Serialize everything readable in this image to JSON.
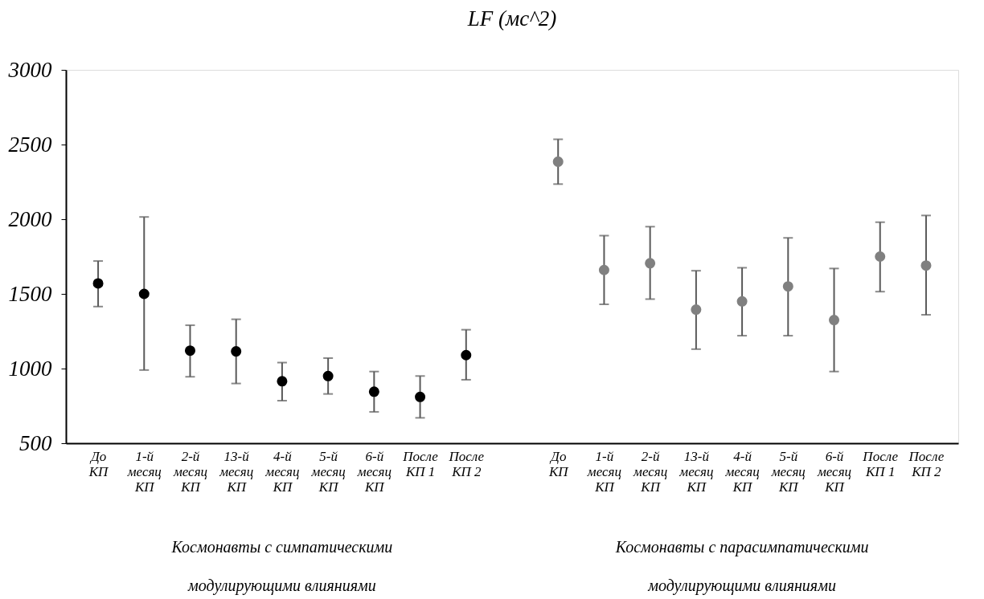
{
  "chart_data": {
    "type": "scatter",
    "title": "LF (мс^2)",
    "categories": [
      "До\nКП",
      "1-й\nмесяц\nКП",
      "2-й\nмесяц\nКП",
      "13-й\nмесяц\nКП",
      "4-й\nмесяц\nКП",
      "5-й\nмесяц\nКП",
      "6-й\nмесяц\nКП",
      "После\nКП 1",
      "После\nКП 2",
      null,
      "До\nКП",
      "1-й\nмесяц\nКП",
      "2-й\nмесяц\nКП",
      "13-й\nмесяц\nКП",
      "4-й\nмесяц\nКП",
      "5-й\nмесяц\nКП",
      "6-й\nмесяц\nКП",
      "После\nКП 1",
      "После\nКП 2"
    ],
    "series": [
      {
        "color": "#000000",
        "values": [
          1570,
          1500,
          1120,
          1115,
          915,
          950,
          845,
          810,
          1090,
          null,
          null,
          null,
          null,
          null,
          null,
          null,
          null,
          null,
          null
        ],
        "errors": [
          [
            1415,
            1720
          ],
          [
            990,
            2015
          ],
          [
            945,
            1290
          ],
          [
            900,
            1330
          ],
          [
            785,
            1040
          ],
          [
            830,
            1070
          ],
          [
            710,
            980
          ],
          [
            670,
            950
          ],
          [
            925,
            1260
          ],
          null,
          null,
          null,
          null,
          null,
          null,
          null,
          null,
          null,
          null
        ]
      },
      {
        "color": "#808080",
        "values": [
          null,
          null,
          null,
          null,
          null,
          null,
          null,
          null,
          null,
          null,
          2385,
          1660,
          1705,
          1395,
          1450,
          1550,
          1325,
          1750,
          1690
        ],
        "errors": [
          null,
          null,
          null,
          null,
          null,
          null,
          null,
          null,
          null,
          null,
          [
            2235,
            2535
          ],
          [
            1430,
            1890
          ],
          [
            1465,
            1950
          ],
          [
            1130,
            1655
          ],
          [
            1220,
            1675
          ],
          [
            1220,
            1875
          ],
          [
            980,
            1670
          ],
          [
            1515,
            1980
          ],
          [
            1360,
            2025
          ]
        ]
      }
    ],
    "ylim": [
      500,
      3000
    ],
    "yticks": [
      500,
      1000,
      1500,
      2000,
      2500,
      3000
    ],
    "grid": false,
    "marker": "circle",
    "annotations": [
      "Космонавты с симпатическими\nмодулирующими влияниями",
      "Космонавты с парасимпатическими\nмодулирующими влияниями"
    ]
  }
}
